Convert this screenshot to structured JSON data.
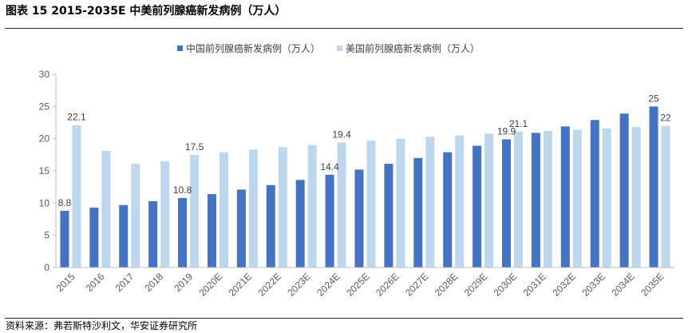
{
  "header": {
    "title": "图表 15 2015-2035E 中美前列腺癌新发病例（万人）"
  },
  "footer": {
    "source": "资料来源：弗若斯特沙利文，华安证券研究所"
  },
  "chart_data": {
    "type": "bar",
    "title": "图表 15 2015-2035E 中美前列腺癌新发病例（万人）",
    "xlabel": "",
    "ylabel": "",
    "ylim": [
      0,
      30
    ],
    "yticks": [
      "0",
      "5",
      "10",
      "15",
      "20",
      "25",
      "30"
    ],
    "grid": false,
    "legend_position": "top-center",
    "categories": [
      "2015",
      "2016",
      "2017",
      "2018",
      "2019",
      "2020E",
      "2021E",
      "2022E",
      "2023E",
      "2024E",
      "2025E",
      "2026E",
      "2027E",
      "2028E",
      "2029E",
      "2030E",
      "2031E",
      "2032E",
      "2033E",
      "2034E",
      "2035E"
    ],
    "series": [
      {
        "name": "中国前列腺癌新发病例（万人）",
        "color": "#4472c4",
        "values": [
          8.8,
          9.3,
          9.7,
          10.3,
          10.8,
          11.4,
          12.1,
          12.8,
          13.6,
          14.4,
          15.2,
          16.1,
          17.0,
          17.9,
          18.9,
          19.9,
          20.9,
          21.9,
          22.9,
          23.9,
          25.0
        ]
      },
      {
        "name": "美国前列腺癌新发病例（万人）",
        "color": "#bdd7ee",
        "values": [
          22.1,
          18.1,
          16.1,
          16.5,
          17.5,
          17.9,
          18.3,
          18.7,
          19.0,
          19.4,
          19.7,
          20.0,
          20.3,
          20.5,
          20.8,
          21.1,
          21.2,
          21.4,
          21.6,
          21.8,
          22.0
        ]
      }
    ],
    "data_labels": [
      {
        "series": 0,
        "index": 0,
        "text": "8.8"
      },
      {
        "series": 1,
        "index": 0,
        "text": "22.1"
      },
      {
        "series": 0,
        "index": 4,
        "text": "10.8"
      },
      {
        "series": 1,
        "index": 4,
        "text": "17.5"
      },
      {
        "series": 0,
        "index": 9,
        "text": "14.4"
      },
      {
        "series": 1,
        "index": 9,
        "text": "19.4"
      },
      {
        "series": 0,
        "index": 15,
        "text": "19.9"
      },
      {
        "series": 1,
        "index": 15,
        "text": "21.1"
      },
      {
        "series": 0,
        "index": 20,
        "text": "25"
      },
      {
        "series": 1,
        "index": 20,
        "text": "22"
      }
    ]
  }
}
